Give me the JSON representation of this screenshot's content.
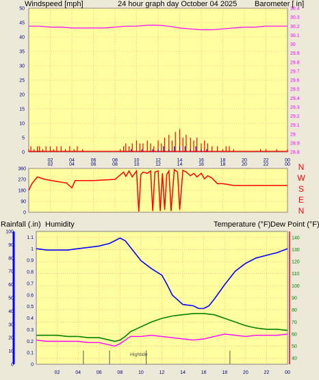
{
  "header": {
    "left_label": "Windspeed [mph]",
    "center_label": "24 hour graph day   October 04 2025",
    "right_label": "Barometer [ in]"
  },
  "colors": {
    "plot_bg": "#ffffa0",
    "frame_bg": "#ece9d8",
    "grid": "#ff9090",
    "wind": "#ff0000",
    "gust": "#0000ff",
    "baro": "#ff00ff",
    "direction": "#ff0000",
    "rain": "#ff0000",
    "humidity": "#0000ff",
    "temperature": "#008000",
    "dewpoint": "#ff00ff"
  },
  "direction_letters": [
    "N",
    "W",
    "S",
    "E",
    "N"
  ],
  "bottom_labels": {
    "rainfall": "Rainfall (.in)",
    "humidity": "Humidity",
    "temperature": "Temperature (°F)",
    "dewpoint": "Dew Point (°F)",
    "hightide": "Hightide"
  },
  "chart_data": [
    {
      "type": "line",
      "name": "wind-baro",
      "x_ticks": [
        "02",
        "04",
        "06",
        "08",
        "10",
        "12",
        "14",
        "16",
        "18",
        "20",
        "22",
        "00"
      ],
      "xlim": [
        0,
        24
      ],
      "y_left_ticks": [
        "0",
        "5",
        "10",
        "15",
        "20",
        "25",
        "30",
        "35",
        "40",
        "45",
        "50"
      ],
      "ylim_left": [
        0,
        50
      ],
      "y_right_ticks": [
        "28.8",
        "28.9",
        "29",
        "29.1",
        "29.2",
        "29.3",
        "29.4",
        "29.5",
        "29.6",
        "29.7",
        "29.8",
        "29.9",
        "30",
        "30.1",
        "30.2",
        "30.3",
        "30.4"
      ],
      "ylim_right": [
        28.8,
        30.4
      ],
      "series": [
        {
          "name": "Barometer",
          "axis": "right",
          "x": [
            0,
            1,
            2,
            3,
            4,
            5,
            6,
            7,
            8,
            9,
            10,
            11,
            12,
            13,
            14,
            15,
            16,
            17,
            18,
            19,
            20,
            21,
            22,
            23,
            24
          ],
          "values": [
            30.2,
            30.2,
            30.19,
            30.19,
            30.18,
            30.18,
            30.18,
            30.18,
            30.19,
            30.2,
            30.2,
            30.21,
            30.21,
            30.2,
            30.18,
            30.17,
            30.16,
            30.16,
            30.17,
            30.18,
            30.19,
            30.19,
            30.2,
            30.2,
            30.2
          ]
        },
        {
          "name": "Windspeed",
          "axis": "left",
          "x": [
            0,
            0.2,
            0.5,
            0.8,
            1,
            1.3,
            1.6,
            2,
            2.3,
            2.6,
            3,
            3.4,
            3.8,
            4.2,
            4.5,
            5,
            6,
            7,
            8,
            8.5,
            8.8,
            9,
            9.3,
            9.6,
            10,
            10.3,
            10.6,
            11,
            11.3,
            11.6,
            12,
            12.3,
            12.6,
            13,
            13.3,
            13.6,
            14,
            14.3,
            14.6,
            15,
            15.3,
            15.6,
            16,
            16.3,
            16.6,
            17,
            17.5,
            18,
            18.3,
            18.6,
            19,
            20,
            21,
            21.5,
            22,
            23,
            24
          ],
          "values": [
            1,
            2,
            1,
            2,
            2,
            1,
            2,
            2,
            1,
            2,
            2,
            1,
            2,
            1,
            2,
            1,
            0,
            0,
            0,
            1,
            2,
            3,
            2,
            3,
            4,
            3,
            3,
            4,
            3,
            2,
            4,
            3,
            5,
            6,
            4,
            7,
            8,
            5,
            6,
            5,
            4,
            5,
            3,
            4,
            3,
            2,
            2,
            1,
            2,
            2,
            1,
            0,
            0,
            1,
            1,
            1,
            1
          ]
        },
        {
          "name": "Gust",
          "axis": "left",
          "x": [
            8.5,
            9,
            9.5,
            10,
            10.5,
            11,
            11.5,
            12,
            12.5,
            13,
            13.5,
            14,
            14.5,
            15,
            15.5,
            16,
            16.5,
            17,
            18
          ],
          "values": [
            0,
            0,
            1,
            0,
            1,
            0,
            1,
            1,
            2,
            1,
            2,
            2,
            2,
            1,
            2,
            1,
            1,
            0,
            0
          ]
        }
      ]
    },
    {
      "type": "line",
      "name": "wind-direction",
      "x_ticks": [
        "02",
        "04",
        "06",
        "08",
        "10",
        "12",
        "14",
        "16",
        "18",
        "20",
        "22",
        "00"
      ],
      "xlim": [
        0,
        24
      ],
      "y_ticks": [
        "0",
        "90",
        "180",
        "270",
        "360"
      ],
      "ylim": [
        0,
        360
      ],
      "series": [
        {
          "name": "Direction",
          "x": [
            0,
            0.3,
            0.8,
            1.5,
            2.5,
            3.5,
            4,
            4.3,
            5,
            6,
            7,
            8,
            8.8,
            9,
            9.3,
            9.6,
            10,
            10.2,
            10.4,
            10.6,
            11,
            11.3,
            11.5,
            11.7,
            12,
            12.2,
            12.4,
            12.6,
            12.8,
            13,
            13.2,
            13.5,
            13.8,
            14,
            14.3,
            14.6,
            15,
            15.3,
            15.6,
            16,
            16.3,
            16.6,
            17,
            17.5,
            18,
            19,
            20,
            21,
            22,
            23,
            24
          ],
          "values": [
            180,
            235,
            290,
            270,
            255,
            240,
            200,
            260,
            260,
            260,
            265,
            270,
            330,
            295,
            340,
            290,
            340,
            5,
            310,
            330,
            320,
            340,
            10,
            330,
            340,
            10,
            320,
            20,
            310,
            340,
            10,
            350,
            330,
            20,
            345,
            330,
            300,
            320,
            290,
            320,
            275,
            300,
            280,
            235,
            235,
            220,
            220,
            220,
            220,
            220,
            220
          ]
        }
      ]
    },
    {
      "type": "line",
      "name": "rain-humidity-temperature",
      "x_ticks": [
        "02",
        "04",
        "06",
        "08",
        "10",
        "12",
        "14",
        "16",
        "18",
        "20",
        "22",
        "00"
      ],
      "xlim": [
        0,
        24
      ],
      "y_left_ticks": [
        "0",
        "0.1",
        "0.2",
        "0.3",
        "0.4",
        "0.5",
        "0.6",
        "0.7",
        "0.8",
        "0.9",
        "1",
        "1.1"
      ],
      "ylim_left": [
        0,
        1.15
      ],
      "y_left2_ticks": [
        "0",
        "10",
        "20",
        "30",
        "40",
        "50",
        "60",
        "70",
        "80",
        "90",
        "100"
      ],
      "ylim_left2": [
        0,
        100
      ],
      "y_right_ticks": [
        "40",
        "50",
        "60",
        "70",
        "80",
        "90",
        "100",
        "110",
        "120",
        "130",
        "140"
      ],
      "ylim_right": [
        35,
        145
      ],
      "series": [
        {
          "name": "Humidity",
          "axis": "left2",
          "x": [
            0,
            1,
            2,
            3,
            4,
            5,
            6,
            7,
            7.5,
            8,
            8.5,
            9,
            9.5,
            10,
            11,
            12,
            12.5,
            13,
            14,
            15,
            15.5,
            16,
            16.5,
            17,
            18,
            19,
            20,
            21,
            22,
            23,
            24
          ],
          "values": [
            87,
            86,
            86,
            86,
            87,
            88,
            89,
            91,
            93,
            95,
            93,
            88,
            83,
            78,
            72,
            67,
            60,
            52,
            45,
            44,
            42,
            42,
            44,
            49,
            60,
            70,
            76,
            80,
            82,
            84,
            87
          ]
        },
        {
          "name": "Temperature",
          "axis": "right",
          "x": [
            0,
            1,
            2,
            3,
            4,
            5,
            6,
            7,
            7.5,
            8,
            8.5,
            9,
            10,
            11,
            12,
            13,
            14,
            15,
            16,
            17,
            18,
            19,
            20,
            21,
            22,
            23,
            24
          ],
          "values": [
            59,
            59,
            59,
            58,
            58,
            57,
            57,
            55,
            54,
            55,
            58,
            62,
            66,
            70,
            73,
            75,
            76,
            77,
            77,
            76,
            73,
            70,
            67,
            65,
            64,
            64,
            63
          ]
        },
        {
          "name": "Dew Point",
          "axis": "right",
          "x": [
            0,
            1,
            2,
            3,
            4,
            5,
            6,
            7,
            7.5,
            8,
            8.5,
            9,
            10,
            11,
            12,
            13,
            14,
            15,
            16,
            17,
            18,
            19,
            20,
            21,
            22,
            23,
            24
          ],
          "values": [
            55,
            54,
            54,
            54,
            54,
            53,
            53,
            51,
            50,
            52,
            55,
            58,
            58,
            59,
            58,
            57,
            56,
            55,
            56,
            58,
            60,
            59,
            58,
            59,
            59,
            59,
            60
          ]
        },
        {
          "name": "Rainfall",
          "axis": "left",
          "x": [
            0,
            24
          ],
          "values": [
            0,
            0
          ]
        }
      ],
      "annotations": [
        {
          "label": "Hightide",
          "x": 10.5
        }
      ],
      "tide_marks": [
        4.5,
        7,
        10.5,
        18.5
      ]
    }
  ]
}
